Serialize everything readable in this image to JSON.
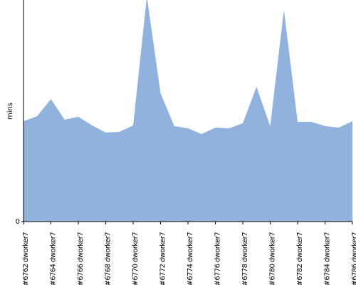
{
  "chart_data": {
    "type": "area",
    "y_label": "mins",
    "categories": [
      "#6762 dworker7",
      null,
      "#6764 dworker7",
      null,
      "#6766 dworker7",
      null,
      "#6768 dworker7",
      null,
      "#6770 dworker7",
      null,
      "#6772 dworker7",
      null,
      "#6774 dworker7",
      null,
      "#6776 dworker7",
      null,
      "#6778 dworker7",
      null,
      "#6780 dworker7",
      null,
      "#6782 dworker7",
      null,
      "#6784 dworker7",
      null,
      "#6786 dworker7"
    ],
    "values": [
      4.53,
      4.76,
      5.53,
      4.6,
      4.73,
      4.34,
      4.02,
      4.05,
      4.34,
      10.16,
      5.79,
      4.31,
      4.21,
      3.95,
      4.24,
      4.21,
      4.44,
      6.08,
      4.31,
      9.55,
      4.5,
      4.5,
      4.31,
      4.24,
      4.53
    ],
    "color": "#91b2dc",
    "ylim": [
      0,
      10
    ],
    "yticks": [
      0
    ]
  }
}
